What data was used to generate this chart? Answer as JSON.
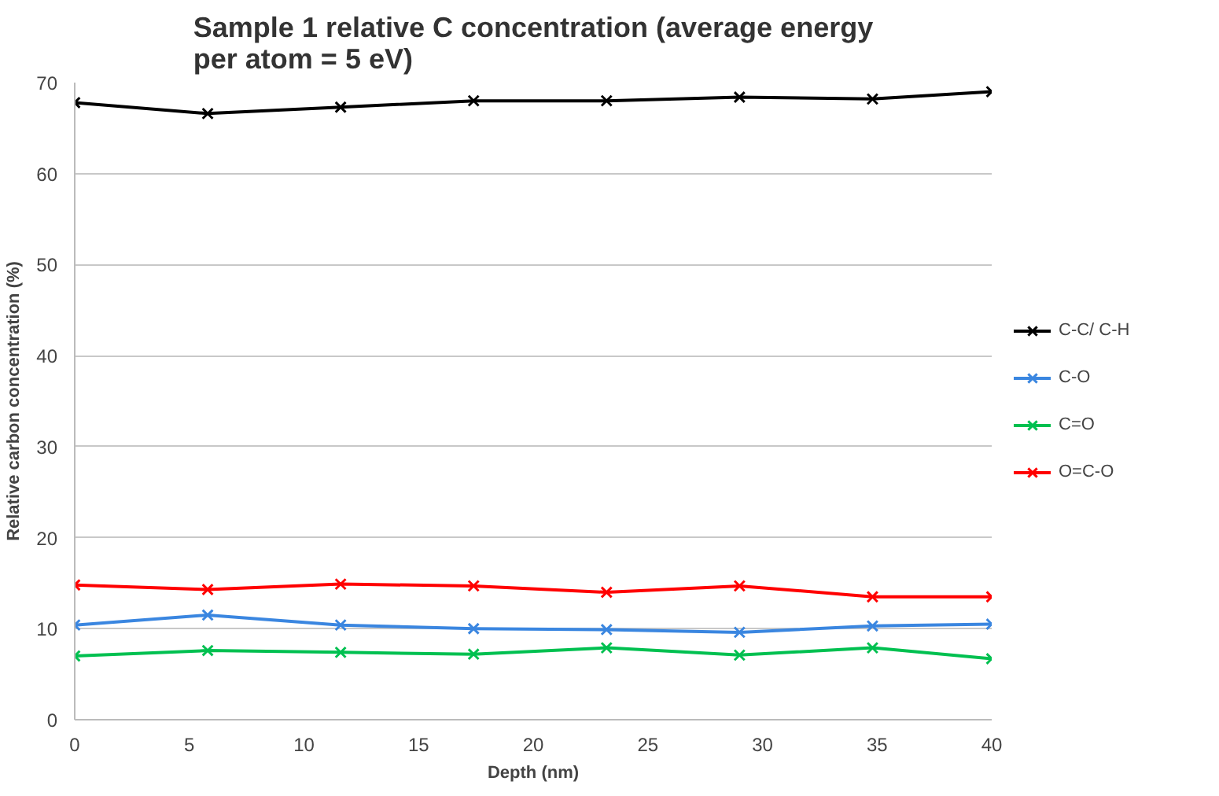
{
  "chart_data": {
    "type": "line",
    "title": "Sample 1 relative C concentration (average energy per atom = 5 eV)",
    "xlabel": "Depth (nm)",
    "ylabel": "Relative carbon concentration (%)",
    "x": [
      0,
      5.8,
      11.6,
      17.4,
      23.2,
      29,
      34.8,
      40
    ],
    "series": [
      {
        "name": "C-C/ C-H",
        "color": "#000000",
        "values": [
          67.8,
          66.6,
          67.3,
          68.0,
          68.0,
          68.4,
          68.2,
          69.0
        ]
      },
      {
        "name": "C-O",
        "color": "#3a86e0",
        "values": [
          10.4,
          11.5,
          10.4,
          10.0,
          9.9,
          9.6,
          10.3,
          10.5
        ]
      },
      {
        "name": "C=O",
        "color": "#00c050",
        "values": [
          7.0,
          7.6,
          7.4,
          7.2,
          7.9,
          7.1,
          7.9,
          6.7
        ]
      },
      {
        "name": "O=C-O",
        "color": "#ff0000",
        "values": [
          14.8,
          14.3,
          14.9,
          14.7,
          14.0,
          14.7,
          13.5,
          13.5
        ]
      }
    ],
    "xlim": [
      0,
      40
    ],
    "xticks": [
      0,
      5,
      10,
      15,
      20,
      25,
      30,
      35,
      40
    ],
    "ylim": [
      0,
      70
    ],
    "yticks": [
      0,
      10,
      20,
      30,
      40,
      50,
      60,
      70
    ],
    "grid": "y",
    "legend": "right",
    "marker": "cross",
    "line_style": "solid"
  }
}
